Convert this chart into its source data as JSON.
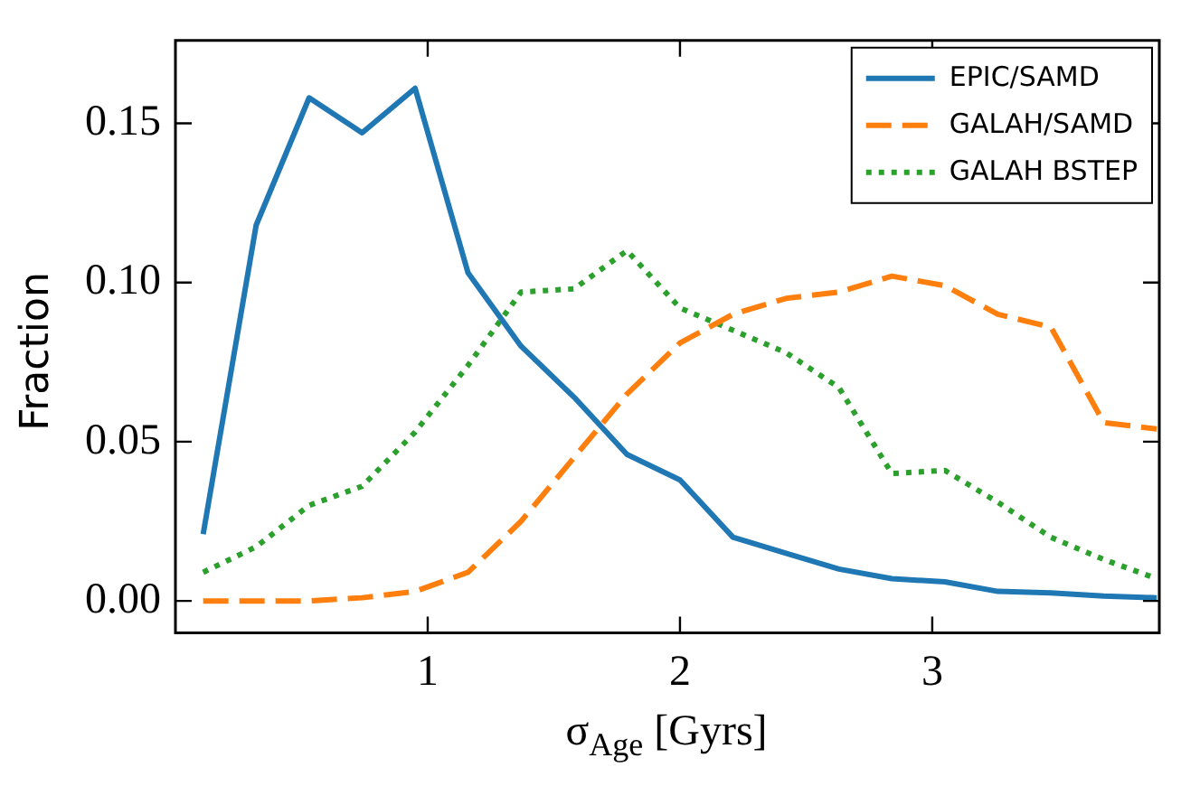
{
  "chart_data": {
    "type": "line",
    "xlabel": "σ$_{Age}$ [Gyrs]",
    "ylabel": "Fraction",
    "x": [
      0.11,
      0.32,
      0.53,
      0.74,
      0.95,
      1.16,
      1.37,
      1.58,
      1.79,
      2.0,
      2.21,
      2.42,
      2.63,
      2.84,
      3.05,
      3.26,
      3.47,
      3.68,
      3.89
    ],
    "series": [
      {
        "name": "EPIC/SAMD",
        "color": "#1f77b4",
        "line_style": "solid",
        "values": [
          0.021,
          0.118,
          0.158,
          0.147,
          0.161,
          0.103,
          0.08,
          0.064,
          0.046,
          0.038,
          0.02,
          0.015,
          0.01,
          0.007,
          0.006,
          0.003,
          0.0025,
          0.0015,
          0.001
        ]
      },
      {
        "name": "GALAH/SAMD",
        "color": "#ff7f0e",
        "line_style": "dashed",
        "values": [
          0,
          0,
          0,
          0.001,
          0.003,
          0.009,
          0.025,
          0.045,
          0.065,
          0.081,
          0.09,
          0.095,
          0.097,
          0.102,
          0.099,
          0.09,
          0.086,
          0.056,
          0.054
        ]
      },
      {
        "name": "GALAH BSTEP",
        "color": "#2ca02c",
        "line_style": "dotted",
        "values": [
          0.009,
          0.017,
          0.03,
          0.036,
          0.053,
          0.074,
          0.097,
          0.098,
          0.11,
          0.092,
          0.085,
          0.078,
          0.067,
          0.04,
          0.041,
          0.031,
          0.02,
          0.013,
          0.007
        ]
      }
    ],
    "xlim": [
      0,
      3.9
    ],
    "xticks": [
      1,
      2,
      3
    ],
    "ylim": [
      -0.01,
      0.176
    ],
    "yticks": [
      {
        "value": 0,
        "label": "0.00"
      },
      {
        "value": 0.05,
        "label": "0.05"
      },
      {
        "value": 0.1,
        "label": "0.10"
      },
      {
        "value": 0.15,
        "label": "0.15"
      }
    ],
    "grid": false,
    "legend": "top right",
    "marker": "none"
  }
}
